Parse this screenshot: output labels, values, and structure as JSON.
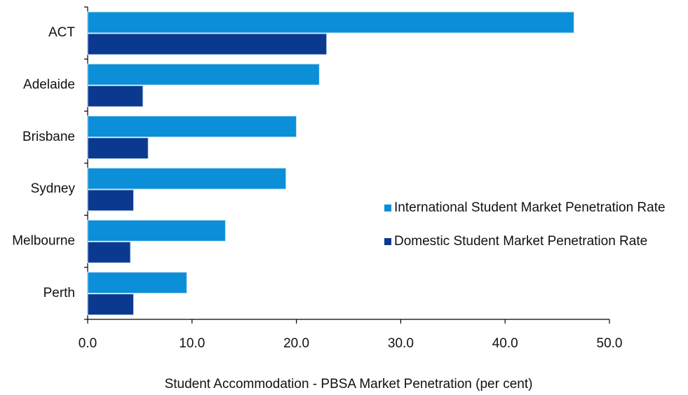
{
  "chart_data": {
    "type": "hbar",
    "categories": [
      "ACT",
      "Adelaide",
      "Brisbane",
      "Sydney",
      "Melbourne",
      "Perth"
    ],
    "series": [
      {
        "name": "International Student Market Penetration Rate",
        "color": "#0a8fd8",
        "values": [
          46.6,
          22.2,
          20.0,
          19.0,
          13.2,
          9.5
        ]
      },
      {
        "name": "Domestic Student Market Penetration Rate",
        "color": "#0b3990",
        "values": [
          22.9,
          5.3,
          5.8,
          4.4,
          4.1,
          4.4
        ]
      }
    ],
    "xlabel": "Student Accommodation - PBSA Market Penetration (per cent)",
    "xlim": [
      0,
      50
    ],
    "xticks": [
      {
        "value": 0,
        "label": "0.0"
      },
      {
        "value": 10,
        "label": "10.0"
      },
      {
        "value": 20,
        "label": "20.0"
      },
      {
        "value": 30,
        "label": "30.0"
      },
      {
        "value": 40,
        "label": "40.0"
      },
      {
        "value": 50,
        "label": "50.0"
      }
    ]
  }
}
